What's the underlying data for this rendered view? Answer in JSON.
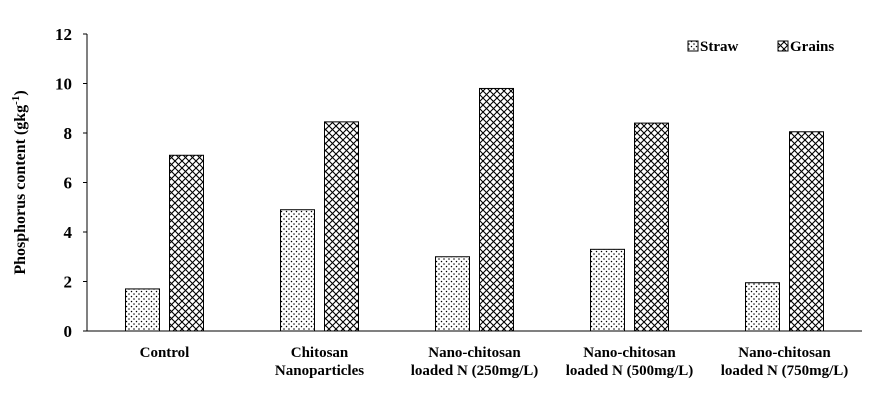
{
  "chart_data": {
    "type": "bar",
    "categories": [
      [
        "Control"
      ],
      [
        "Chitosan",
        "Nanoparticles"
      ],
      [
        "Nano-chitosan",
        "loaded N (250mg/L)"
      ],
      [
        "Nano-chitosan",
        "loaded N (500mg/L)"
      ],
      [
        "Nano-chitosan",
        "loaded N (750mg/L)"
      ]
    ],
    "series": [
      {
        "name": "Straw",
        "values": [
          1.7,
          4.9,
          3.0,
          3.3,
          1.95
        ],
        "pattern": "dots"
      },
      {
        "name": "Grains",
        "values": [
          7.1,
          8.45,
          9.8,
          8.4,
          8.05
        ],
        "pattern": "crosshatch"
      }
    ],
    "ylabel": "Phosphorus content (gkg",
    "ylabel_superscript": "-1",
    "ylabel_close": ")",
    "ylim": [
      0,
      12
    ],
    "yticks": [
      0,
      2,
      4,
      6,
      8,
      10,
      12
    ],
    "grid": false,
    "legend_position": "top-right",
    "bar_fill": "#ffffff",
    "bar_stroke": "#000000"
  }
}
